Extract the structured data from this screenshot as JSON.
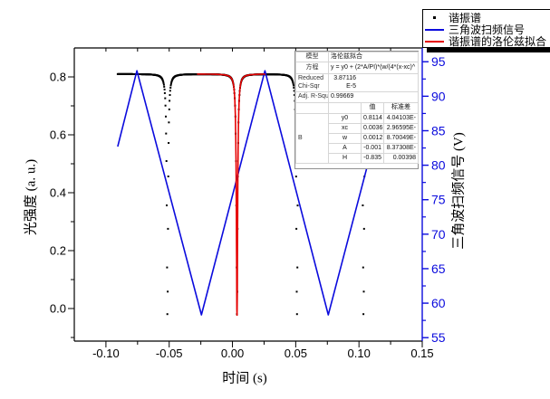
{
  "colors": {
    "axis_blue": "#0b0bdd",
    "fit_red": "#e60000",
    "data_black": "#000000",
    "frame_black": "#000000",
    "table_grid": "#d6d6d6"
  },
  "legend": {
    "items": [
      {
        "label": "谐振谱",
        "type": "marker",
        "color": "#000000"
      },
      {
        "label": "三角波扫频信号",
        "type": "line",
        "color": "#0b0bdd"
      },
      {
        "label": "谐振谱的洛伦兹拟合",
        "type": "line",
        "color": "#e60000"
      }
    ]
  },
  "inset": {
    "model_label": "模型",
    "model_value": "洛伦兹拟合",
    "equation_label": "方程",
    "equation_value": "y = y0 + (2*A/PI)*(w/(4*(x-xc)^",
    "chisq_label_line1": "Reduced",
    "chisq_label_line2": "Chi-Sqr",
    "chisq_value_line1": "3.87116",
    "chisq_value_line2": "E-5",
    "rsq_label": "Adj. R-Squ",
    "rsq_value": "0.99669",
    "col_value": "值",
    "col_stderr": "标准差",
    "group_label": "B",
    "params": [
      {
        "name": "y0",
        "value": "0.8114",
        "stderr": "4.04103E-"
      },
      {
        "name": "xc",
        "value": "0.0036",
        "stderr": "2.96595E-"
      },
      {
        "name": "w",
        "value": "0.0012",
        "stderr": "8.70049E-"
      },
      {
        "name": "A",
        "value": "-0.001",
        "stderr": "8.37308E-"
      },
      {
        "name": "H",
        "value": "-0.835",
        "stderr": "0.00398"
      }
    ]
  },
  "chart_data": {
    "type": "line+scatter",
    "title": "",
    "xlabel": "时间 (s)",
    "ylabel_left": "光强度 (a. u.)",
    "ylabel_right": "三角波扫频信号 (V)",
    "xlim": [
      -0.125,
      0.15
    ],
    "ylim_left": [
      -0.1125,
      0.9
    ],
    "ylim_right": [
      54.5,
      97.0
    ],
    "x_ticks": [
      -0.1,
      -0.05,
      0.0,
      0.05,
      0.1,
      0.15
    ],
    "x_tick_labels": [
      "-0.10",
      "-0.05",
      "0.00",
      "0.05",
      "0.10",
      "0.15"
    ],
    "x_minor_ticks": [
      -0.075,
      -0.025,
      0.025,
      0.075,
      0.125
    ],
    "y_ticks_left": [
      0.0,
      0.2,
      0.4,
      0.6,
      0.8
    ],
    "y_tick_labels_left": [
      "0.0",
      "0.2",
      "0.4",
      "0.6",
      "0.8"
    ],
    "y_minor_ticks_left": [
      -0.1,
      0.1,
      0.3,
      0.5,
      0.7
    ],
    "y_ticks_right": [
      55,
      60,
      65,
      70,
      75,
      80,
      85,
      90,
      95
    ],
    "y_tick_labels_right": [
      "55",
      "60",
      "65",
      "70",
      "75",
      "80",
      "85",
      "90",
      "95"
    ],
    "y_minor_ticks_right": [
      57.5,
      62.5,
      67.5,
      72.5,
      77.5,
      82.5,
      87.5,
      92.5
    ],
    "grid": false,
    "legend_position": "top-right",
    "series": [
      {
        "name": "谐振谱",
        "type": "scatter",
        "axis": "left",
        "color": "#000000",
        "model": {
          "kind": "lorentzian-dips",
          "baseline": 0.81,
          "depth": 0.835,
          "fwhm": 0.0012,
          "centers": [
            -0.0514,
            0.0036,
            0.051,
            0.1036
          ],
          "t_start": -0.0907,
          "t_end": 0.105,
          "dt": 0.00025
        }
      },
      {
        "name": "三角波扫频信号",
        "type": "line",
        "axis": "right",
        "color": "#0b0bdd",
        "points": [
          [
            -0.0907,
            82.7
          ],
          [
            -0.0755,
            93.7
          ],
          [
            -0.0245,
            58.3
          ],
          [
            0.0257,
            93.7
          ],
          [
            0.0757,
            58.3
          ],
          [
            0.106,
            79.5
          ]
        ]
      },
      {
        "name": "谐振谱的洛伦兹拟合",
        "type": "line",
        "axis": "left",
        "color": "#e60000",
        "model": {
          "kind": "lorentzian-dips",
          "baseline": 0.81,
          "depth": 0.835,
          "fwhm": 0.0012,
          "centers": [
            0.0036
          ],
          "t_start": -0.028,
          "t_end": 0.026,
          "dt": 0.0001
        }
      }
    ]
  }
}
